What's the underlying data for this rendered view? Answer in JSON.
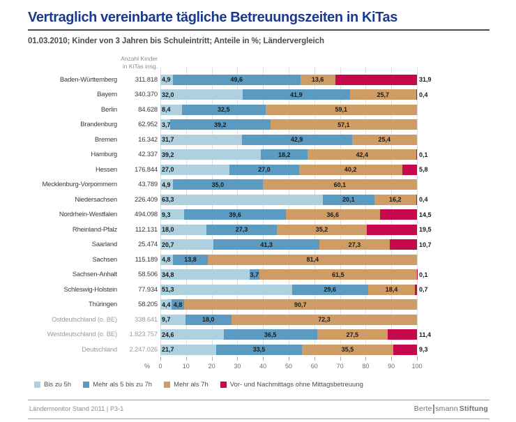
{
  "title": "Vertraglich vereinbarte tägliche Betreuungszeiten in KiTas",
  "subtitle": "01.03.2010; Kinder von 3 Jahren bis Schuleintritt; Anteile in %; Ländervergleich",
  "col_header": {
    "line1": "Anzahl Kinder",
    "line2": "in KiTas insg."
  },
  "axis": {
    "unit": "%",
    "ticks": [
      0,
      10,
      20,
      30,
      40,
      50,
      60,
      70,
      80,
      90,
      100
    ]
  },
  "colors": {
    "title_blue": "#1c3a8d",
    "series": [
      "#AFD0DF",
      "#5B9BC1",
      "#D09C66",
      "#C6094C"
    ]
  },
  "chart_data": {
    "type": "bar",
    "orientation": "horizontal-stacked",
    "unit": "%",
    "xlim": [
      0,
      100
    ],
    "x_ticks": [
      0,
      10,
      20,
      30,
      40,
      50,
      60,
      70,
      80,
      90,
      100
    ],
    "series": [
      "Bis zu 5h",
      "Mehr als 5 bis zu 7h",
      "Mehr als 7h",
      "Vor- und Nachmittags ohne Mittagsbetreuung"
    ],
    "series_colors": [
      "#AFD0DF",
      "#5B9BC1",
      "#D09C66",
      "#C6094C"
    ],
    "rows": [
      {
        "label": "Baden-Württemberg",
        "count": "311.818",
        "values": [
          4.9,
          49.6,
          13.6,
          31.9
        ],
        "muted": false
      },
      {
        "label": "Bayern",
        "count": "340.370",
        "values": [
          32.0,
          41.9,
          25.7,
          0.4
        ],
        "muted": false
      },
      {
        "label": "Berlin",
        "count": "84.628",
        "values": [
          8.4,
          32.5,
          59.1
        ],
        "muted": false
      },
      {
        "label": "Brandenburg",
        "count": "62.952",
        "values": [
          3.7,
          39.2,
          57.1
        ],
        "muted": false
      },
      {
        "label": "Bremen",
        "count": "16.342",
        "values": [
          31.7,
          42.9,
          25.4
        ],
        "muted": false
      },
      {
        "label": "Hamburg",
        "count": "42.337",
        "values": [
          39.2,
          18.2,
          42.4,
          0.1
        ],
        "muted": false
      },
      {
        "label": "Hessen",
        "count": "176.844",
        "values": [
          27.0,
          27.0,
          40.2,
          5.8
        ],
        "muted": false
      },
      {
        "label": "Mecklenburg-Vorpommern",
        "count": "43.789",
        "values": [
          4.9,
          35.0,
          60.1
        ],
        "muted": false
      },
      {
        "label": "Niedersachsen",
        "count": "226.409",
        "values": [
          63.3,
          20.1,
          16.2,
          0.4
        ],
        "muted": false
      },
      {
        "label": "Nordrhein-Westfalen",
        "count": "494.098",
        "values": [
          9.3,
          39.6,
          36.6,
          14.5
        ],
        "muted": false
      },
      {
        "label": "Rheinland-Pfalz",
        "count": "112.131",
        "values": [
          18.0,
          27.3,
          35.2,
          19.5
        ],
        "muted": false
      },
      {
        "label": "Saarland",
        "count": "25.474",
        "values": [
          20.7,
          41.3,
          27.3,
          10.7
        ],
        "muted": false
      },
      {
        "label": "Sachsen",
        "count": "115.189",
        "values": [
          4.8,
          13.8,
          81.4
        ],
        "muted": false
      },
      {
        "label": "Sachsen-Anhalt",
        "count": "58.506",
        "values": [
          34.8,
          3.7,
          61.5,
          0.1
        ],
        "muted": false
      },
      {
        "label": "Schleswig-Holstein",
        "count": "77.934",
        "values": [
          51.3,
          29.6,
          18.4,
          0.7
        ],
        "muted": false
      },
      {
        "label": "Thüringen",
        "count": "58.205",
        "values": [
          4.4,
          4.8,
          90.7
        ],
        "muted": false
      },
      {
        "label": "Ostdeutschland (o. BE)",
        "count": "338.641",
        "values": [
          9.7,
          18.0,
          72.3
        ],
        "muted": true
      },
      {
        "label": "Westdeutschland (o. BE)",
        "count": "1.823.757",
        "values": [
          24.6,
          36.5,
          27.5,
          11.4
        ],
        "muted": true
      },
      {
        "label": "Deutschland",
        "count": "2.247.026",
        "values": [
          21.7,
          33.5,
          35.5,
          9.3
        ],
        "muted": true
      }
    ]
  },
  "footer": {
    "left": "Ländermonitor Stand 2011 | P3-1",
    "brand_pre": "Berte",
    "brand_mid": "smann",
    "brand_bold": "Stiftung"
  }
}
